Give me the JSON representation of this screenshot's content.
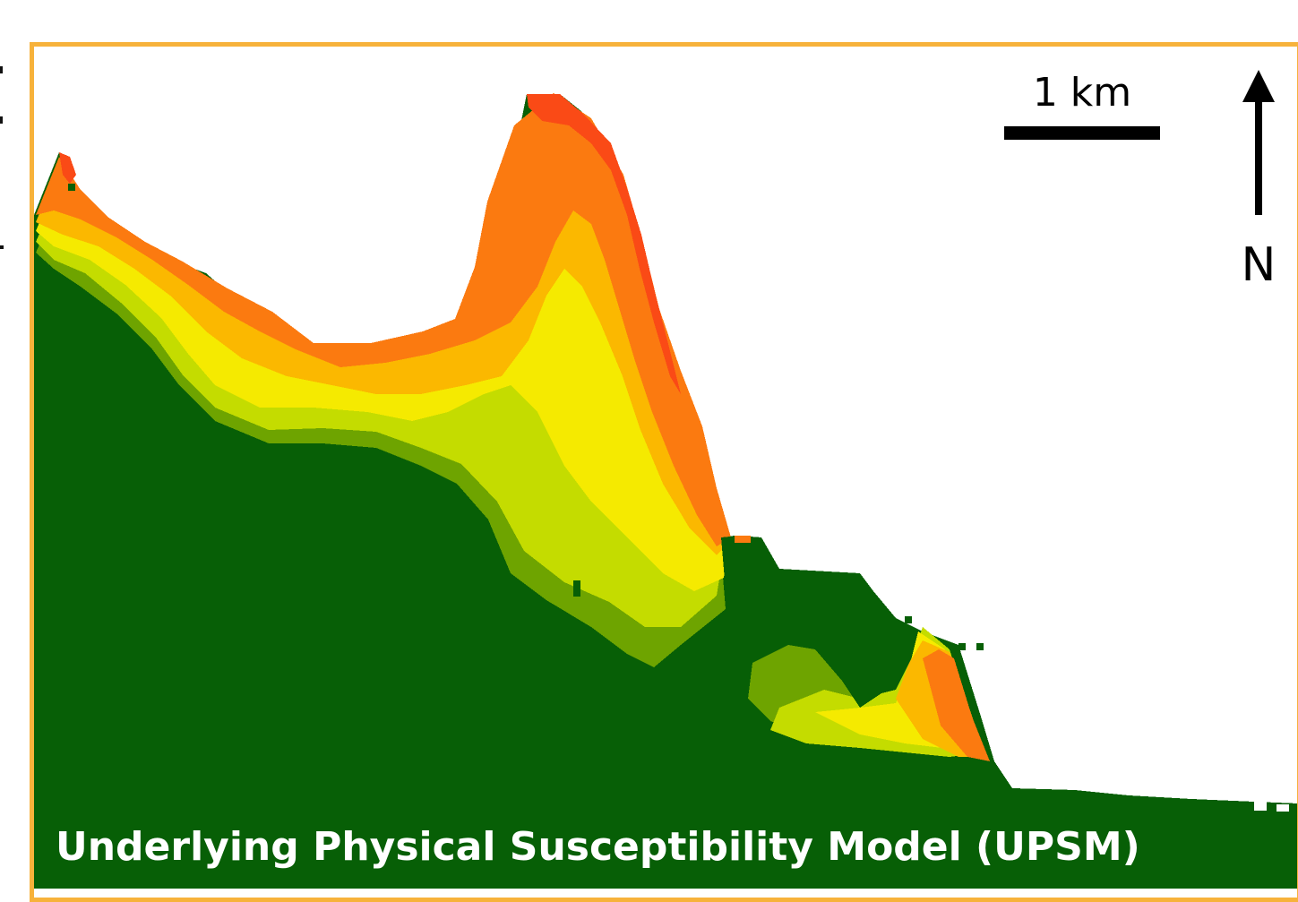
{
  "map": {
    "title": "Underlying Physical Susceptibility Model (UPSM)",
    "scale_bar_label": "1 km",
    "north_label": "N",
    "legend_colors": {
      "land": "#075f06",
      "low": "#76a800",
      "low_moderate": "#c4dc00",
      "moderate": "#f5ea00",
      "moderate_high": "#fbb800",
      "high": "#fb7a10",
      "very_high": "#fa4a16",
      "sea": "#ffffff",
      "frame": "#f7b23b"
    }
  }
}
